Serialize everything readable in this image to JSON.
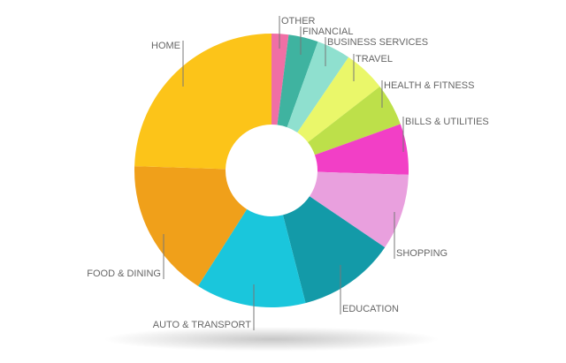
{
  "chart_data": {
    "type": "donut",
    "categories": [
      "OTHER",
      "FINANCIAL",
      "BUSINESS SERVICES",
      "TRAVEL",
      "HEALTH & FITNESS",
      "BILLS & UTILITIES",
      "SHOPPING",
      "EDUCATION",
      "AUTO & TRANSPORT",
      "FOOD & DINING",
      "HOME"
    ],
    "values": [
      2,
      3.5,
      4,
      5,
      5,
      6,
      9,
      11.5,
      13,
      16.5,
      24.5
    ],
    "colors": [
      "#f06fa5",
      "#3fb3a0",
      "#8fe0cf",
      "#eaf76a",
      "#bde04a",
      "#f23fc6",
      "#e9a0de",
      "#139aa8",
      "#1ac6dc",
      "#f0a01a",
      "#fcc419"
    ]
  }
}
